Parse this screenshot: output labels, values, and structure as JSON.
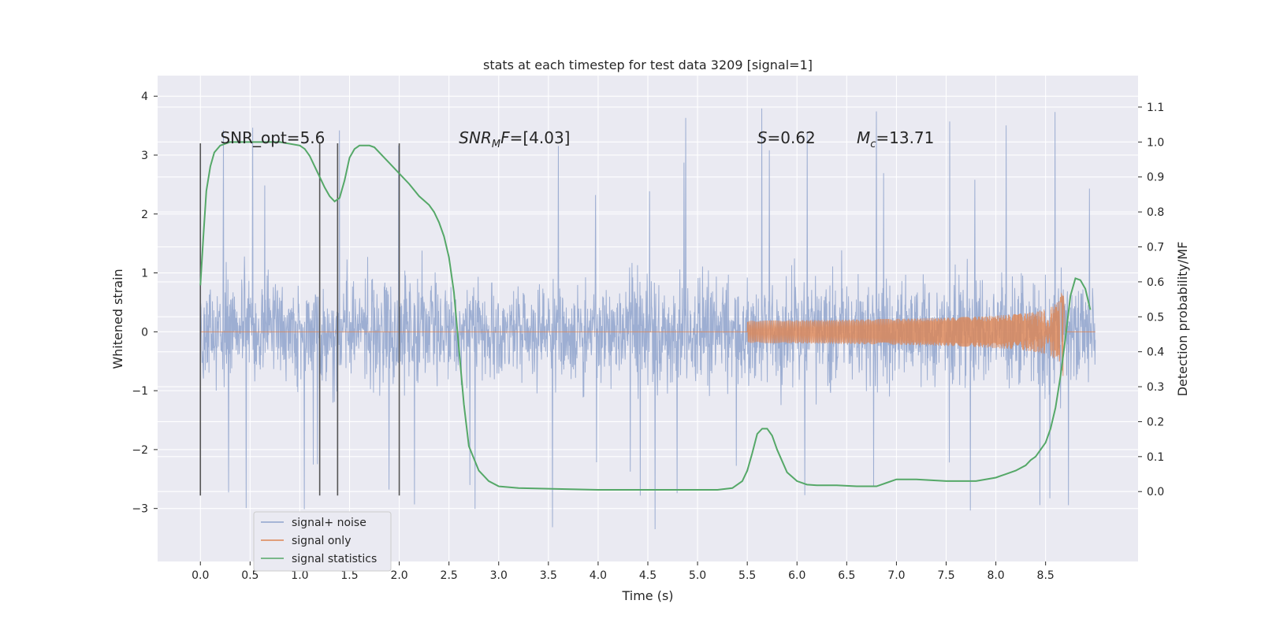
{
  "chart_data": {
    "type": "line",
    "title": "stats at each timestep for test data 3209 [signal=1]",
    "xlabel": "Time (s)",
    "ylabel_left": "Whitened strain",
    "ylabel_right": "Detection probability/MF",
    "xlim": [
      -0.43,
      9.43
    ],
    "ylim_left": [
      -3.9,
      4.35
    ],
    "ylim_right": [
      -0.2,
      1.19
    ],
    "x_ticks": [
      "0.0",
      "0.5",
      "1.0",
      "1.5",
      "2.0",
      "2.5",
      "3.0",
      "3.5",
      "4.0",
      "4.5",
      "5.0",
      "5.5",
      "6.0",
      "6.5",
      "7.0",
      "7.5",
      "8.0",
      "8.5"
    ],
    "y_left_ticks": [
      "4",
      "3",
      "2",
      "1",
      "0",
      "−1",
      "−2",
      "−3"
    ],
    "y_right_ticks": [
      "1.1",
      "1.0",
      "0.9",
      "0.8",
      "0.7",
      "0.6",
      "0.5",
      "0.4",
      "0.3",
      "0.2",
      "0.1",
      "0.0"
    ],
    "grid": true,
    "legend_placement": "lower-left",
    "colors": {
      "noise": "#8fa3cc",
      "signal": "#dd8452",
      "stats": "#55a868",
      "vline": "#555555",
      "background": "#eaeaf2",
      "grid": "#ffffff"
    },
    "annotations": [
      {
        "base": "SNR_opt=5.6",
        "sub": "",
        "rest": "",
        "italic": false,
        "x": 0.2
      },
      {
        "base": "SNR",
        "sub": "M",
        "rest": "F=[4.03]",
        "italic": true,
        "x": 2.6
      },
      {
        "base": "S",
        "sub": "",
        "rest": "=0.62",
        "italic": true,
        "x": 5.6
      },
      {
        "base": "M",
        "sub": "c",
        "rest": "=13.71",
        "italic": true,
        "x": 6.6
      }
    ],
    "annotation_y": 3.2,
    "vlines": [
      0.0,
      1.2,
      1.38,
      2.0
    ],
    "vline_range": [
      -2.78,
      3.2
    ],
    "series": [
      {
        "name": "signal+ noise",
        "axis": "left",
        "x_range": [
          0.0,
          9.0
        ],
        "envelope": 1.0,
        "spike_max": 4.0,
        "spike_min": -3.6
      },
      {
        "name": "signal only",
        "axis": "left",
        "chirp": {
          "start": 5.5,
          "merger": 8.68,
          "end": 9.0,
          "peak": 1.0
        }
      },
      {
        "name": "signal statistics",
        "axis": "right",
        "x": [
          0.0,
          0.03,
          0.06,
          0.1,
          0.14,
          0.2,
          0.3,
          0.5,
          0.8,
          1.0,
          1.05,
          1.1,
          1.15,
          1.2,
          1.25,
          1.3,
          1.35,
          1.4,
          1.45,
          1.5,
          1.55,
          1.6,
          1.65,
          1.7,
          1.75,
          1.8,
          1.9,
          2.0,
          2.1,
          2.2,
          2.3,
          2.35,
          2.4,
          2.45,
          2.5,
          2.55,
          2.6,
          2.65,
          2.7,
          2.8,
          2.9,
          3.0,
          3.2,
          3.5,
          4.0,
          4.5,
          5.0,
          5.2,
          5.35,
          5.45,
          5.5,
          5.55,
          5.6,
          5.65,
          5.7,
          5.75,
          5.8,
          5.9,
          6.0,
          6.1,
          6.2,
          6.4,
          6.6,
          6.8,
          6.9,
          7.0,
          7.2,
          7.5,
          7.8,
          8.0,
          8.1,
          8.2,
          8.3,
          8.35,
          8.4,
          8.45,
          8.5,
          8.55,
          8.6,
          8.65,
          8.7,
          8.75,
          8.8,
          8.85,
          8.9,
          8.95
        ],
        "values": [
          0.59,
          0.73,
          0.86,
          0.93,
          0.97,
          0.99,
          1.0,
          1.0,
          1.0,
          0.99,
          0.98,
          0.96,
          0.93,
          0.9,
          0.87,
          0.845,
          0.83,
          0.84,
          0.89,
          0.955,
          0.98,
          0.99,
          0.99,
          0.99,
          0.985,
          0.97,
          0.94,
          0.91,
          0.88,
          0.845,
          0.82,
          0.8,
          0.77,
          0.73,
          0.67,
          0.57,
          0.41,
          0.25,
          0.13,
          0.06,
          0.03,
          0.015,
          0.01,
          0.008,
          0.005,
          0.005,
          0.005,
          0.005,
          0.01,
          0.03,
          0.06,
          0.11,
          0.165,
          0.18,
          0.18,
          0.16,
          0.12,
          0.055,
          0.03,
          0.02,
          0.018,
          0.018,
          0.015,
          0.015,
          0.025,
          0.035,
          0.035,
          0.03,
          0.03,
          0.04,
          0.05,
          0.06,
          0.075,
          0.09,
          0.1,
          0.12,
          0.14,
          0.18,
          0.24,
          0.33,
          0.44,
          0.56,
          0.61,
          0.605,
          0.58,
          0.52
        ]
      }
    ]
  }
}
